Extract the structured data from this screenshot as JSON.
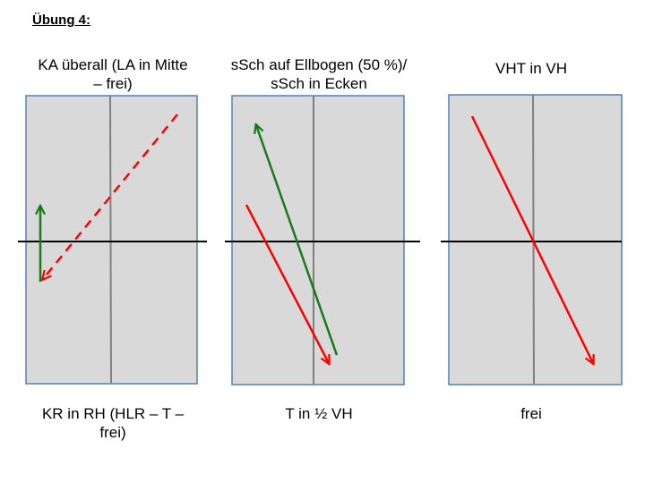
{
  "title": "Übung 4:",
  "panels": [
    {
      "top_label_line1": "KA überall (LA in Mitte",
      "top_label_line2": "– frei)",
      "bottom_label_line1": "KR in RH (HLR – T –",
      "bottom_label_line2": "frei)"
    },
    {
      "top_label_line1": "sSch auf Ellbogen (50 %)/",
      "top_label_line2": "sSch in Ecken",
      "bottom_label_line1": "T in ½ VH",
      "bottom_label_line2": ""
    },
    {
      "top_label_line1": "VHT in VH",
      "top_label_line2": "",
      "bottom_label_line1": "frei",
      "bottom_label_line2": ""
    }
  ],
  "colors": {
    "rink_fill": "#d9d9d9",
    "rink_border": "#4f81bd",
    "center_line": "#808080",
    "red": "#ff0000",
    "green": "#1a7a1a",
    "black": "#000000"
  }
}
